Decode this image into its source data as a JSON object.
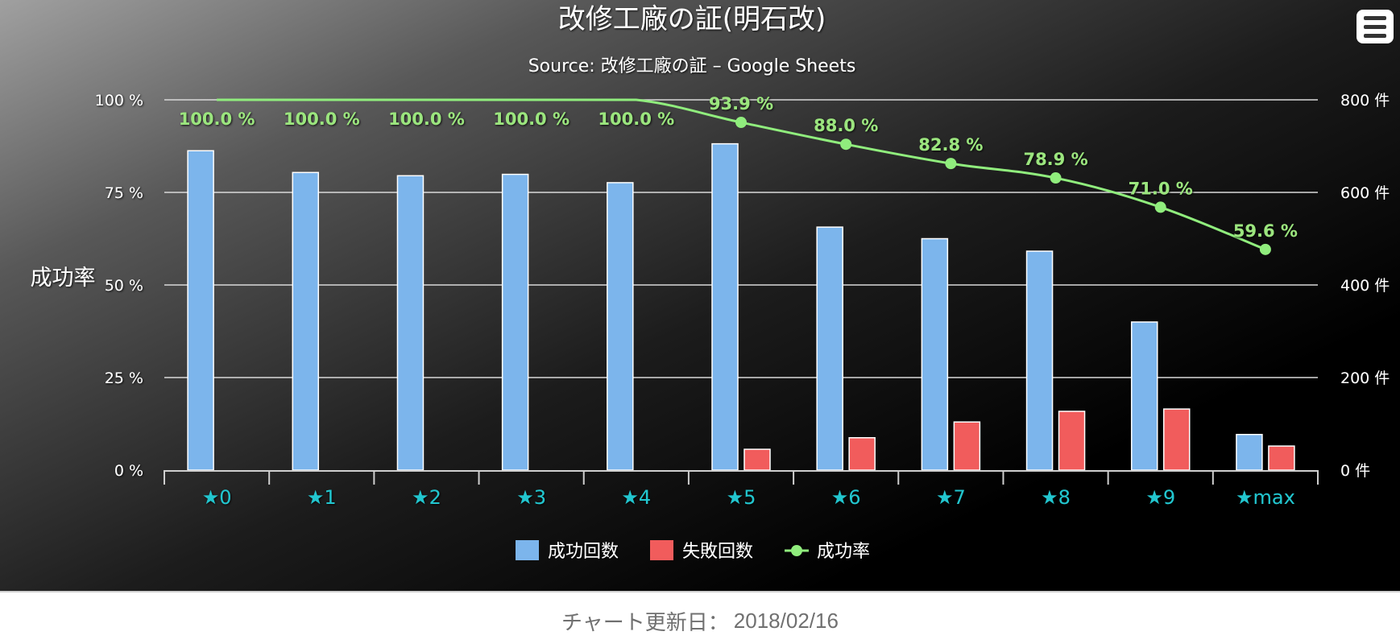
{
  "chart_data": {
    "type": "bar",
    "title": "改修工廠の証(明石改)",
    "subtitle": "Source: 改修工廠の証 – Google Sheets",
    "categories": [
      "★0",
      "★1",
      "★2",
      "★3",
      "★4",
      "★5",
      "★6",
      "★7",
      "★8",
      "★9",
      "★max"
    ],
    "series": [
      {
        "name": "成功回数",
        "type": "bar",
        "axis": "right",
        "color": "#7cb5ec",
        "values": [
          690,
          643,
          636,
          639,
          621,
          705,
          525,
          500,
          473,
          320,
          77
        ]
      },
      {
        "name": "失敗回数",
        "type": "bar",
        "axis": "right",
        "color": "#f15c5c",
        "values": [
          0,
          0,
          0,
          0,
          0,
          45,
          70,
          104,
          127,
          132,
          52
        ]
      },
      {
        "name": "成功率",
        "type": "line",
        "axis": "left",
        "color": "#90ed7d",
        "values": [
          100.0,
          100.0,
          100.0,
          100.0,
          100.0,
          93.9,
          88.0,
          82.8,
          78.9,
          71.0,
          59.6
        ],
        "labels": [
          "100.0 %",
          "100.0 %",
          "100.0 %",
          "100.0 %",
          "100.0 %",
          "93.9 %",
          "88.0 %",
          "82.8 %",
          "78.9 %",
          "71.0 %",
          "59.6 %"
        ]
      }
    ],
    "y_left": {
      "title": "成功率",
      "ylim": [
        0,
        100
      ],
      "ticks": [
        "0 %",
        "25 %",
        "50 %",
        "75 %",
        "100 %"
      ],
      "tick_values": [
        0,
        25,
        50,
        75,
        100
      ]
    },
    "y_right": {
      "title": "",
      "ylim": [
        0,
        800
      ],
      "ticks": [
        "0 件",
        "200 件",
        "400 件",
        "600 件",
        "800 件"
      ],
      "tick_values": [
        0,
        200,
        400,
        600,
        800
      ]
    },
    "grid": true,
    "legend_position": "bottom-center"
  },
  "menu_icon": "hamburger-menu-icon",
  "footer": {
    "label": "チャート更新日：",
    "date": "2018/02/16"
  }
}
